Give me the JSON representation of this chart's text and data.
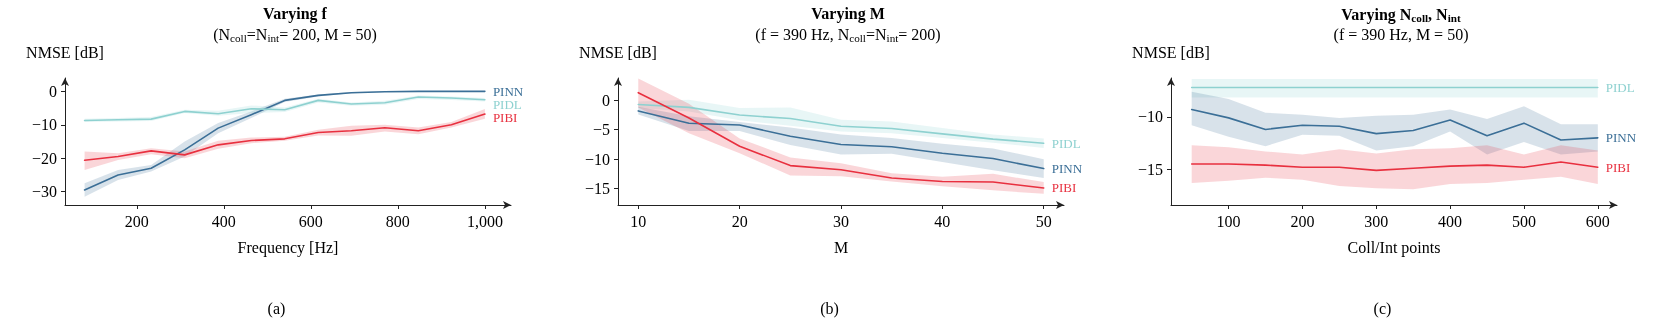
{
  "chart_data": [
    {
      "type": "line",
      "title": "Varying f",
      "subtitle": "(N$_{coll}$=N$_{int}$= 200, M = 50)",
      "xlabel": "Frequency [Hz]",
      "ylabel": "NMSE [dB]",
      "annotations": [
        "(a)"
      ],
      "marker": "none",
      "x": [
        80,
        157,
        233,
        310,
        387,
        463,
        540,
        617,
        693,
        770,
        847,
        923,
        1000
      ],
      "xlim": [
        35,
        1060
      ],
      "xticks": [
        200,
        400,
        600,
        800,
        {
          "value": 1000,
          "label": "1,000"
        }
      ],
      "ylim": [
        -34,
        4
      ],
      "yticks": [
        -30,
        -20,
        -10,
        0
      ],
      "series": [
        {
          "name": "PINN",
          "color": "#3b6f97",
          "values": [
            -29.5,
            -25,
            -23,
            -17.5,
            -11,
            -7,
            -2.7,
            -1.2,
            -0.4,
            -0.1,
            0,
            0,
            0
          ],
          "lower": [
            -31.5,
            -26.5,
            -24,
            -19.5,
            -12.5,
            -8,
            -3.2,
            -1.5,
            -0.6,
            -0.2,
            -0.1,
            -0.1,
            -0.1
          ],
          "upper": [
            -27.5,
            -23.5,
            -22,
            -15,
            -9.5,
            -6,
            -2.2,
            -0.9,
            -0.2,
            0,
            0,
            0,
            0
          ]
        },
        {
          "name": "PIDL",
          "color": "#8ed1d0",
          "values": [
            -8.7,
            -8.5,
            -8.3,
            -6,
            -6.7,
            -5.2,
            -5.5,
            -2.7,
            -3.8,
            -3.4,
            -1.7,
            -2.0,
            -2.5
          ],
          "lower": [
            -9.2,
            -9,
            -8.9,
            -6.5,
            -7.3,
            -6.5,
            -6.2,
            -3.3,
            -4.3,
            -4,
            -2.3,
            -2.6,
            -3
          ],
          "upper": [
            -8.2,
            -8,
            -7.7,
            -5.5,
            -5.8,
            -4.2,
            -4.8,
            -2.2,
            -3.3,
            -2.8,
            -1.2,
            -1.5,
            -2
          ]
        },
        {
          "name": "PIBI",
          "color": "#e8303f",
          "values": [
            -20.6,
            -19.5,
            -17.8,
            -19,
            -16,
            -14.7,
            -14.2,
            -12.3,
            -11.8,
            -10.9,
            -11.8,
            -10,
            -6.8
          ],
          "lower": [
            -23.5,
            -20.5,
            -18.8,
            -20,
            -17.2,
            -15.5,
            -14.8,
            -13.2,
            -13.3,
            -12,
            -12.8,
            -10.8,
            -8.2
          ],
          "upper": [
            -18,
            -18.5,
            -17,
            -18,
            -14.8,
            -13.8,
            -13.6,
            -11.5,
            -10.3,
            -10,
            -10.8,
            -9.2,
            -5.3
          ]
        }
      ]
    },
    {
      "type": "line",
      "title": "Varying M",
      "subtitle": "(f = 390 Hz, N$_{coll}$=N$_{int}$= 200)",
      "xlabel": "M",
      "ylabel": "NMSE [dB]",
      "annotations": [
        "(b)"
      ],
      "marker": "none",
      "x": [
        10,
        15,
        20,
        25,
        30,
        35,
        40,
        45,
        50
      ],
      "xlim": [
        8,
        52
      ],
      "xticks": [
        10,
        20,
        30,
        40,
        50
      ],
      "ylim": [
        -17.8,
        3.8
      ],
      "yticks": [
        -15,
        -10,
        -5,
        0
      ],
      "series": [
        {
          "name": "PIDL",
          "color": "#8ed1d0",
          "values": [
            -0.7,
            -1.2,
            -2.5,
            -3.1,
            -4.4,
            -4.8,
            -5.7,
            -6.6,
            -7.3
          ],
          "lower": [
            -1.3,
            -1.9,
            -3.4,
            -4.3,
            -5.3,
            -5.6,
            -6.4,
            -7.2,
            -8.1
          ],
          "upper": [
            -0.2,
            0.1,
            -1.3,
            -1.2,
            -3.3,
            -3.6,
            -4.7,
            -5.8,
            -6.5
          ]
        },
        {
          "name": "PINN",
          "color": "#3b6f97",
          "values": [
            -1.8,
            -3.9,
            -4.2,
            -6.1,
            -7.5,
            -7.9,
            -9,
            -9.9,
            -11.6
          ],
          "lower": [
            -2.4,
            -5.2,
            -5.2,
            -7.6,
            -9.2,
            -9.1,
            -10.5,
            -11.9,
            -13.2
          ],
          "upper": [
            -1.1,
            -2.7,
            -3.7,
            -4.6,
            -5.8,
            -6.4,
            -7.4,
            -8.2,
            -10
          ]
        },
        {
          "name": "PIBI",
          "color": "#e8303f",
          "values": [
            1.3,
            -3,
            -7.8,
            -11.1,
            -11.8,
            -13.2,
            -13.8,
            -13.9,
            -14.9
          ],
          "lower": [
            -1.2,
            -5.6,
            -9,
            -12.8,
            -12.9,
            -13.8,
            -14.6,
            -15.3,
            -15.9
          ],
          "upper": [
            3.7,
            -0.6,
            -6.5,
            -9.7,
            -10.7,
            -12.4,
            -13,
            -12.5,
            -13.9
          ]
        }
      ]
    },
    {
      "type": "line",
      "title": "Varying N$_{coll}$, N$_{int}$",
      "subtitle": "(f = 390 Hz, M = 50)",
      "xlabel": "Coll/Int points",
      "ylabel": "NMSE [dB]",
      "annotations": [
        "(c)"
      ],
      "marker": "none",
      "x": [
        50,
        100,
        150,
        200,
        250,
        300,
        350,
        400,
        450,
        500,
        550,
        600
      ],
      "xlim": [
        22,
        626
      ],
      "xticks": [
        100,
        200,
        300,
        400,
        500,
        600
      ],
      "ylim": [
        -18.4,
        -6.3
      ],
      "yticks": [
        -15,
        -10
      ],
      "series": [
        {
          "name": "PIDL",
          "color": "#8ed1d0",
          "values": [
            -7.2,
            -7.2,
            -7.2,
            -7.2,
            -7.2,
            -7.2,
            -7.2,
            -7.2,
            -7.2,
            -7.2,
            -7.2,
            -7.2
          ],
          "lower": [
            -8.15,
            -8.15,
            -8.15,
            -8.15,
            -8.15,
            -8.15,
            -8.15,
            -8.15,
            -8.15,
            -8.15,
            -8.15,
            -8.15
          ],
          "upper": [
            -6.4,
            -6.4,
            -6.4,
            -6.4,
            -6.4,
            -6.4,
            -6.4,
            -6.4,
            -6.4,
            -6.4,
            -6.4,
            -6.4
          ]
        },
        {
          "name": "PINN",
          "color": "#3b6f97",
          "values": [
            -9.3,
            -10.1,
            -11.2,
            -10.8,
            -10.9,
            -11.6,
            -11.3,
            -10.3,
            -11.8,
            -10.6,
            -12.2,
            -12.0
          ],
          "lower": [
            -10.8,
            -11.9,
            -12.8,
            -11.7,
            -11.8,
            -13.2,
            -12.8,
            -11.4,
            -13.6,
            -12.4,
            -13.6,
            -13.3
          ],
          "upper": [
            -7.6,
            -8.3,
            -9.6,
            -9.8,
            -10.1,
            -9.9,
            -9.8,
            -9.3,
            -10.2,
            -9.0,
            -10.7,
            -10.7
          ]
        },
        {
          "name": "PIBI",
          "color": "#e8303f",
          "values": [
            -14.5,
            -14.5,
            -14.6,
            -14.8,
            -14.8,
            -15.1,
            -14.9,
            -14.7,
            -14.6,
            -14.8,
            -14.3,
            -14.8
          ],
          "lower": [
            -16.3,
            -16.1,
            -15.8,
            -16.0,
            -16.6,
            -16.8,
            -16.9,
            -16.4,
            -16.3,
            -16.0,
            -15.7,
            -16.4
          ],
          "upper": [
            -12.7,
            -12.9,
            -13.3,
            -13.6,
            -13.1,
            -13.5,
            -13.1,
            -13.0,
            -12.7,
            -13.6,
            -12.7,
            -13.2
          ]
        }
      ]
    }
  ]
}
